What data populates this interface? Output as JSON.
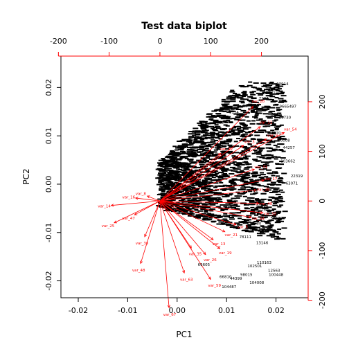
{
  "chart_data": {
    "type": "scatter",
    "title": "Test data biplot",
    "xlabel": "PC1",
    "ylabel": "PC2",
    "xlim": [
      -0.0235,
      0.0265
    ],
    "ylim": [
      -0.0235,
      0.0265
    ],
    "x_ticks": [
      "-0.02",
      "-0.01",
      "0.00",
      "0.01",
      "0.02"
    ],
    "y_ticks": [
      "-0.02",
      "-0.01",
      "0.00",
      "0.01",
      "0.02"
    ],
    "top_ticks": [
      "-200",
      "-100",
      "0",
      "100",
      "200"
    ],
    "right_ticks": [
      "-200",
      "-100",
      "0",
      "100",
      "200"
    ],
    "loadings_lim": [
      -195,
      292
    ],
    "loading_color": "#ff0000",
    "point_color": "#000000",
    "grid": false,
    "legend": "none",
    "point_labels": [
      {
        "text": "63914",
        "x": 0.0213,
        "y": 0.0205
      },
      {
        "text": "396",
        "x": 0.0202,
        "y": 0.0195
      },
      {
        "text": "5001",
        "x": 0.0189,
        "y": 0.0187
      },
      {
        "text": "7224",
        "x": 0.0175,
        "y": 0.0175
      },
      {
        "text": "13600",
        "x": 0.0145,
        "y": 0.016
      },
      {
        "text": "9665497",
        "x": 0.0224,
        "y": 0.0158
      },
      {
        "text": "9174",
        "x": 0.0115,
        "y": 0.0146
      },
      {
        "text": "5033",
        "x": 0.02,
        "y": 0.0142
      },
      {
        "text": "13730",
        "x": 0.0218,
        "y": 0.0135
      },
      {
        "text": "3318",
        "x": 0.0085,
        "y": 0.0125
      },
      {
        "text": "3870",
        "x": 0.02,
        "y": 0.0103
      },
      {
        "text": "30008",
        "x": 0.0216,
        "y": 0.0088
      },
      {
        "text": "44257",
        "x": 0.0226,
        "y": 0.0073
      },
      {
        "text": "103662",
        "x": 0.0224,
        "y": 0.0045
      },
      {
        "text": "22319",
        "x": 0.0242,
        "y": 0.0014
      },
      {
        "text": "63071",
        "x": 0.0232,
        "y": -0.0001
      },
      {
        "text": "110116",
        "x": 0.0148,
        "y": -0.0016
      },
      {
        "text": "40908",
        "x": 0.0172,
        "y": -0.0047
      },
      {
        "text": "32719",
        "x": 0.0167,
        "y": -0.0055
      },
      {
        "text": "54579",
        "x": 0.0201,
        "y": -0.0073
      },
      {
        "text": "13780",
        "x": 0.0158,
        "y": -0.0084
      },
      {
        "text": "17912",
        "x": 0.0176,
        "y": -0.0094
      },
      {
        "text": "78111",
        "x": 0.0138,
        "y": -0.0112
      },
      {
        "text": "13146",
        "x": 0.0172,
        "y": -0.0124
      },
      {
        "text": "110163",
        "x": 0.0176,
        "y": -0.0165
      },
      {
        "text": "66605",
        "x": 0.0054,
        "y": -0.0169
      },
      {
        "text": "102501",
        "x": 0.0157,
        "y": -0.0172
      },
      {
        "text": "12563",
        "x": 0.0196,
        "y": -0.0181
      },
      {
        "text": "100448",
        "x": 0.02,
        "y": -0.019
      },
      {
        "text": "98015",
        "x": 0.014,
        "y": -0.019
      },
      {
        "text": "66810",
        "x": 0.0098,
        "y": -0.0194
      },
      {
        "text": "44399",
        "x": 0.0119,
        "y": -0.0198
      },
      {
        "text": "104008",
        "x": 0.0161,
        "y": -0.0206
      },
      {
        "text": "104487",
        "x": 0.0105,
        "y": -0.0215
      }
    ],
    "loadings": [
      {
        "name": "var_54",
        "x": 245,
        "y": 138
      },
      {
        "name": "var_28",
        "x": 184,
        "y": 191
      },
      {
        "name": "var_11",
        "x": 198,
        "y": 150
      },
      {
        "name": "var_9",
        "x": 210,
        "y": 125
      },
      {
        "name": "var_3",
        "x": 165,
        "y": 112
      },
      {
        "name": "var_22",
        "x": 120,
        "y": 96
      },
      {
        "name": "var_31",
        "x": 186,
        "y": 64
      },
      {
        "name": "var_17",
        "x": 205,
        "y": 42
      },
      {
        "name": "var_38",
        "x": 190,
        "y": 22
      },
      {
        "name": "var_40",
        "x": 195,
        "y": -5
      },
      {
        "name": "var_32",
        "x": 203,
        "y": -24
      },
      {
        "name": "var_44",
        "x": 180,
        "y": -33
      },
      {
        "name": "var_5",
        "x": 150,
        "y": -48
      },
      {
        "name": "var_21",
        "x": 128,
        "y": -62
      },
      {
        "name": "var_13",
        "x": 105,
        "y": -78
      },
      {
        "name": "var_19",
        "x": 118,
        "y": -96
      },
      {
        "name": "var_26",
        "x": 90,
        "y": -108
      },
      {
        "name": "var_35",
        "x": 62,
        "y": -95
      },
      {
        "name": "var_59",
        "x": 100,
        "y": -158
      },
      {
        "name": "var_63",
        "x": 48,
        "y": -145
      },
      {
        "name": "var_67",
        "x": 18,
        "y": -215
      },
      {
        "name": "var_48",
        "x": -38,
        "y": -126
      },
      {
        "name": "var_36",
        "x": -30,
        "y": -72
      },
      {
        "name": "var_25",
        "x": -90,
        "y": -44
      },
      {
        "name": "var_47",
        "x": -50,
        "y": -28
      },
      {
        "name": "var_14",
        "x": -96,
        "y": -9
      },
      {
        "name": "var_16",
        "x": -48,
        "y": 6
      },
      {
        "name": "var_8",
        "x": -25,
        "y": 10
      }
    ]
  }
}
